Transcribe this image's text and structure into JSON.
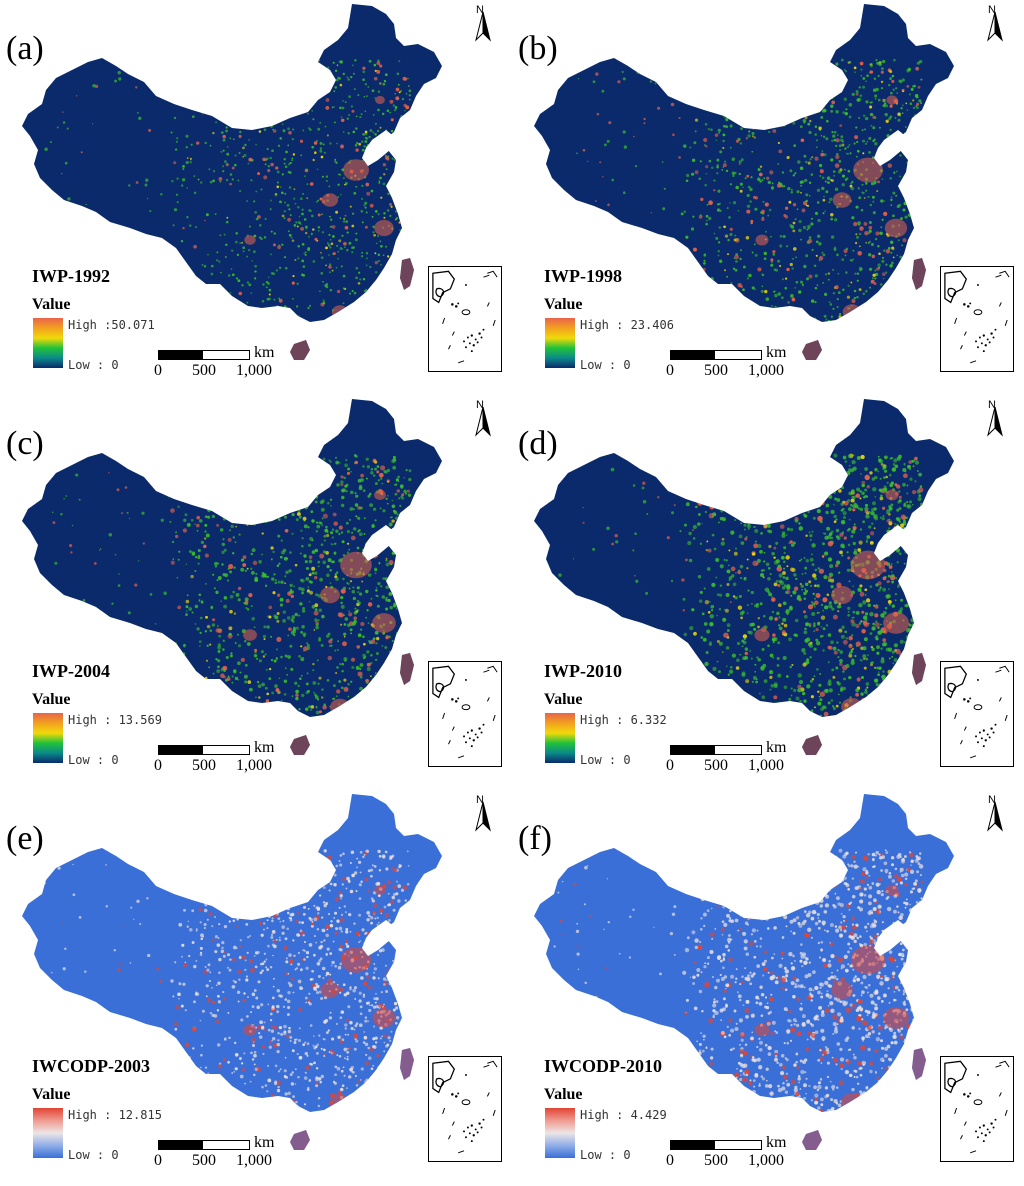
{
  "figure": {
    "scale": {
      "unit": "km",
      "ticks": [
        "0",
        "500",
        "1,000"
      ]
    },
    "north_label": "N",
    "legend_title": "Value",
    "palettes": {
      "iwp": {
        "base": "#0a2a6b",
        "mid": "#3bbf2c",
        "hi": "#e8644a",
        "yellow": "#f2d90a",
        "stops": [
          "#e8644a",
          "#f2a020",
          "#f2d90a",
          "#22c23a",
          "#0a8a8a",
          "#0a2a6b"
        ]
      },
      "iwcodp": {
        "base": "#3a6fd8",
        "mid": "#e8e0e0",
        "hi": "#e04535",
        "stops": [
          "#e04535",
          "#f09a90",
          "#ece6e6",
          "#90aee8",
          "#3a6fd8"
        ]
      }
    },
    "panels": [
      {
        "id": "a",
        "label": "(a)",
        "title": "IWP-1992",
        "high": "High :50.071",
        "low": "Low : 0",
        "palette": "iwp",
        "intensity": 0.35
      },
      {
        "id": "b",
        "label": "(b)",
        "title": "IWP-1998",
        "high": "High : 23.406",
        "low": "Low : 0",
        "palette": "iwp",
        "intensity": 0.55
      },
      {
        "id": "c",
        "label": "(c)",
        "title": "IWP-2004",
        "high": "High : 13.569",
        "low": "Low : 0",
        "palette": "iwp",
        "intensity": 0.65
      },
      {
        "id": "d",
        "label": "(d)",
        "title": "IWP-2010",
        "high": "High : 6.332",
        "low": "Low : 0",
        "palette": "iwp",
        "intensity": 0.8
      },
      {
        "id": "e",
        "label": "(e)",
        "title": "IWCODP-2003",
        "high": "High : 12.815",
        "low": "Low : 0",
        "palette": "iwcodp",
        "intensity": 0.6
      },
      {
        "id": "f",
        "label": "(f)",
        "title": "IWCODP-2010",
        "high": "High : 4.429",
        "low": "Low : 0",
        "palette": "iwcodp",
        "intensity": 0.8
      }
    ]
  }
}
